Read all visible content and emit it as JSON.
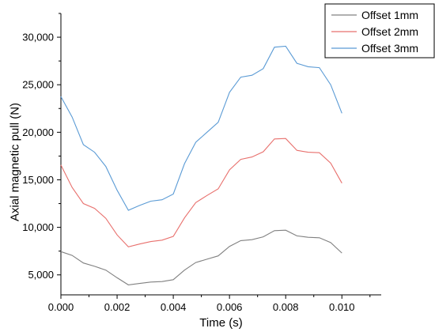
{
  "chart_data": {
    "type": "line",
    "title": "",
    "xlabel": "Time (s)",
    "ylabel": "Axial magnetic pull (N)",
    "xlim": [
      0.0,
      0.0114
    ],
    "ylim": [
      2900,
      32500
    ],
    "grid": false,
    "legend_position": "top-right",
    "x_ticks": [
      0.0,
      0.002,
      0.004,
      0.006,
      0.008,
      0.01
    ],
    "x_tick_labels": [
      "0.000",
      "0.002",
      "0.004",
      "0.006",
      "0.008",
      "0.010"
    ],
    "y_ticks": [
      5000,
      10000,
      15000,
      20000,
      25000,
      30000
    ],
    "y_tick_labels": [
      "5,000",
      "10,000",
      "15,000",
      "20,000",
      "25,000",
      "30,000"
    ],
    "x": [
      0.0,
      0.0004,
      0.0008,
      0.0012,
      0.0016,
      0.002,
      0.0024,
      0.0028,
      0.0032,
      0.0036,
      0.004,
      0.0044,
      0.0048,
      0.0052,
      0.0056,
      0.006,
      0.0064,
      0.0068,
      0.0072,
      0.0076,
      0.008,
      0.0084,
      0.0088,
      0.0092,
      0.0096,
      0.01
    ],
    "series": [
      {
        "name": "Offset 1mm",
        "color": "#808080",
        "values": [
          7450,
          7050,
          6250,
          5900,
          5500,
          4700,
          3950,
          4100,
          4250,
          4300,
          4500,
          5500,
          6300,
          6650,
          7000,
          8000,
          8600,
          8700,
          9000,
          9650,
          9700,
          9100,
          8950,
          8900,
          8400,
          7300
        ]
      },
      {
        "name": "Offset 2mm",
        "color": "#e8706d",
        "values": [
          16550,
          14200,
          12500,
          12000,
          10950,
          9200,
          7950,
          8250,
          8500,
          8650,
          9050,
          11000,
          12600,
          13350,
          14050,
          16050,
          17150,
          17400,
          17950,
          19300,
          19350,
          18100,
          17900,
          17850,
          16750,
          14650
        ]
      },
      {
        "name": "Offset 3mm",
        "color": "#5b9bd5",
        "values": [
          23750,
          21600,
          18700,
          17900,
          16400,
          13900,
          11800,
          12300,
          12750,
          12900,
          13500,
          16700,
          18950,
          20000,
          21050,
          24200,
          25800,
          26000,
          26700,
          28950,
          29050,
          27250,
          26900,
          26800,
          25000,
          22000
        ]
      }
    ]
  }
}
